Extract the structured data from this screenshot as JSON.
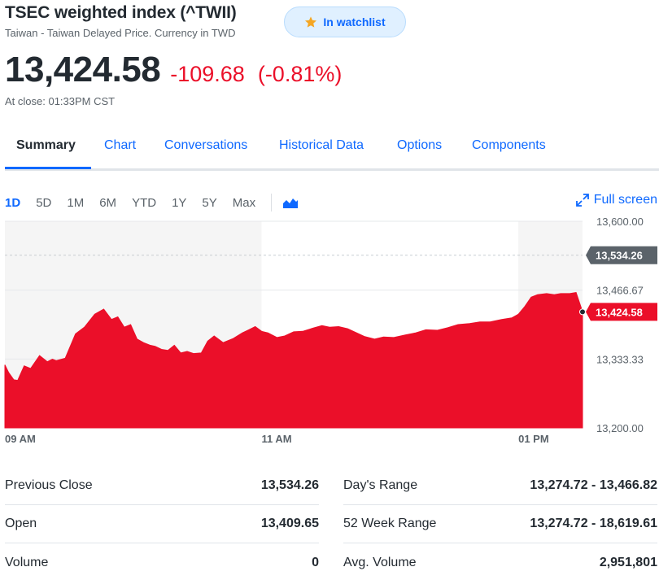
{
  "header": {
    "title": "TSEC weighted index (^TWII)",
    "subtitle": "Taiwan - Taiwan Delayed Price. Currency in TWD",
    "watchlist_label": "In watchlist"
  },
  "quote": {
    "price": "13,424.58",
    "change": "-109.68",
    "change_pct": "(-0.81%)",
    "at_close": "At close: 01:33PM CST"
  },
  "tabs": [
    "Summary",
    "Chart",
    "Conversations",
    "Historical Data",
    "Options",
    "Components"
  ],
  "ranges": [
    "1D",
    "5D",
    "1M",
    "6M",
    "YTD",
    "1Y",
    "5Y",
    "Max"
  ],
  "fullscreen_label": "Full screen",
  "colors": {
    "accent": "#0f69ff",
    "negative": "#eb0f29",
    "area_fill": "#eb0f29",
    "prev_close_tag": "#5b636a"
  },
  "chart_data": {
    "type": "area",
    "ylim": [
      13200,
      13600
    ],
    "y_ticks": [
      "13,600.00",
      "13,466.67",
      "13,333.33",
      "13,200.00"
    ],
    "x_labels": [
      "09 AM",
      "11 AM",
      "01 PM"
    ],
    "x_hours": [
      9,
      11,
      13
    ],
    "xlim_hours": [
      9,
      13.5
    ],
    "previous_close": 13534.26,
    "previous_close_label": "13,534.26",
    "last_value": 13424.58,
    "last_label": "13,424.58",
    "shaded_hours": [
      [
        9,
        11
      ],
      [
        13,
        13.5
      ]
    ],
    "series": [
      {
        "x": [
          9.0,
          9.03,
          9.07,
          9.1,
          9.15,
          9.2,
          9.27,
          9.33,
          9.37,
          9.4,
          9.47,
          9.55,
          9.62,
          9.7,
          9.77,
          9.83,
          9.88,
          9.93,
          9.98,
          10.03,
          10.08,
          10.13,
          10.17,
          10.22,
          10.27,
          10.32,
          10.37,
          10.42,
          10.47,
          10.53,
          10.58,
          10.63,
          10.7,
          10.78,
          10.85,
          10.9,
          10.95,
          11.0,
          11.05,
          11.12,
          11.18,
          11.25,
          11.32,
          11.4,
          11.47,
          11.53,
          11.6,
          11.67,
          11.73,
          11.8,
          11.88,
          11.95,
          12.03,
          12.12,
          12.2,
          12.28,
          12.37,
          12.45,
          12.53,
          12.62,
          12.7,
          12.78,
          12.87,
          12.95,
          13.0,
          13.05,
          13.1,
          13.15,
          13.22,
          13.28,
          13.33,
          13.4,
          13.45,
          13.5
        ],
        "y": [
          13322,
          13307,
          13293,
          13292,
          13320,
          13315,
          13340,
          13328,
          13333,
          13330,
          13335,
          13382,
          13395,
          13420,
          13430,
          13410,
          13415,
          13395,
          13400,
          13372,
          13365,
          13360,
          13358,
          13352,
          13350,
          13360,
          13345,
          13348,
          13344,
          13345,
          13368,
          13378,
          13365,
          13373,
          13384,
          13390,
          13396,
          13387,
          13384,
          13375,
          13378,
          13386,
          13387,
          13393,
          13398,
          13395,
          13396,
          13392,
          13385,
          13377,
          13372,
          13376,
          13375,
          13380,
          13384,
          13390,
          13389,
          13394,
          13400,
          13402,
          13405,
          13405,
          13410,
          13413,
          13420,
          13435,
          13453,
          13458,
          13460,
          13458,
          13460,
          13460,
          13462,
          13425
        ]
      }
    ]
  },
  "stats": {
    "left": [
      {
        "label": "Previous Close",
        "value": "13,534.26"
      },
      {
        "label": "Open",
        "value": "13,409.65"
      },
      {
        "label": "Volume",
        "value": "0"
      }
    ],
    "right": [
      {
        "label": "Day's Range",
        "value": "13,274.72 - 13,466.82"
      },
      {
        "label": "52 Week Range",
        "value": "13,274.72 - 18,619.61"
      },
      {
        "label": "Avg. Volume",
        "value": "2,951,801"
      }
    ]
  }
}
